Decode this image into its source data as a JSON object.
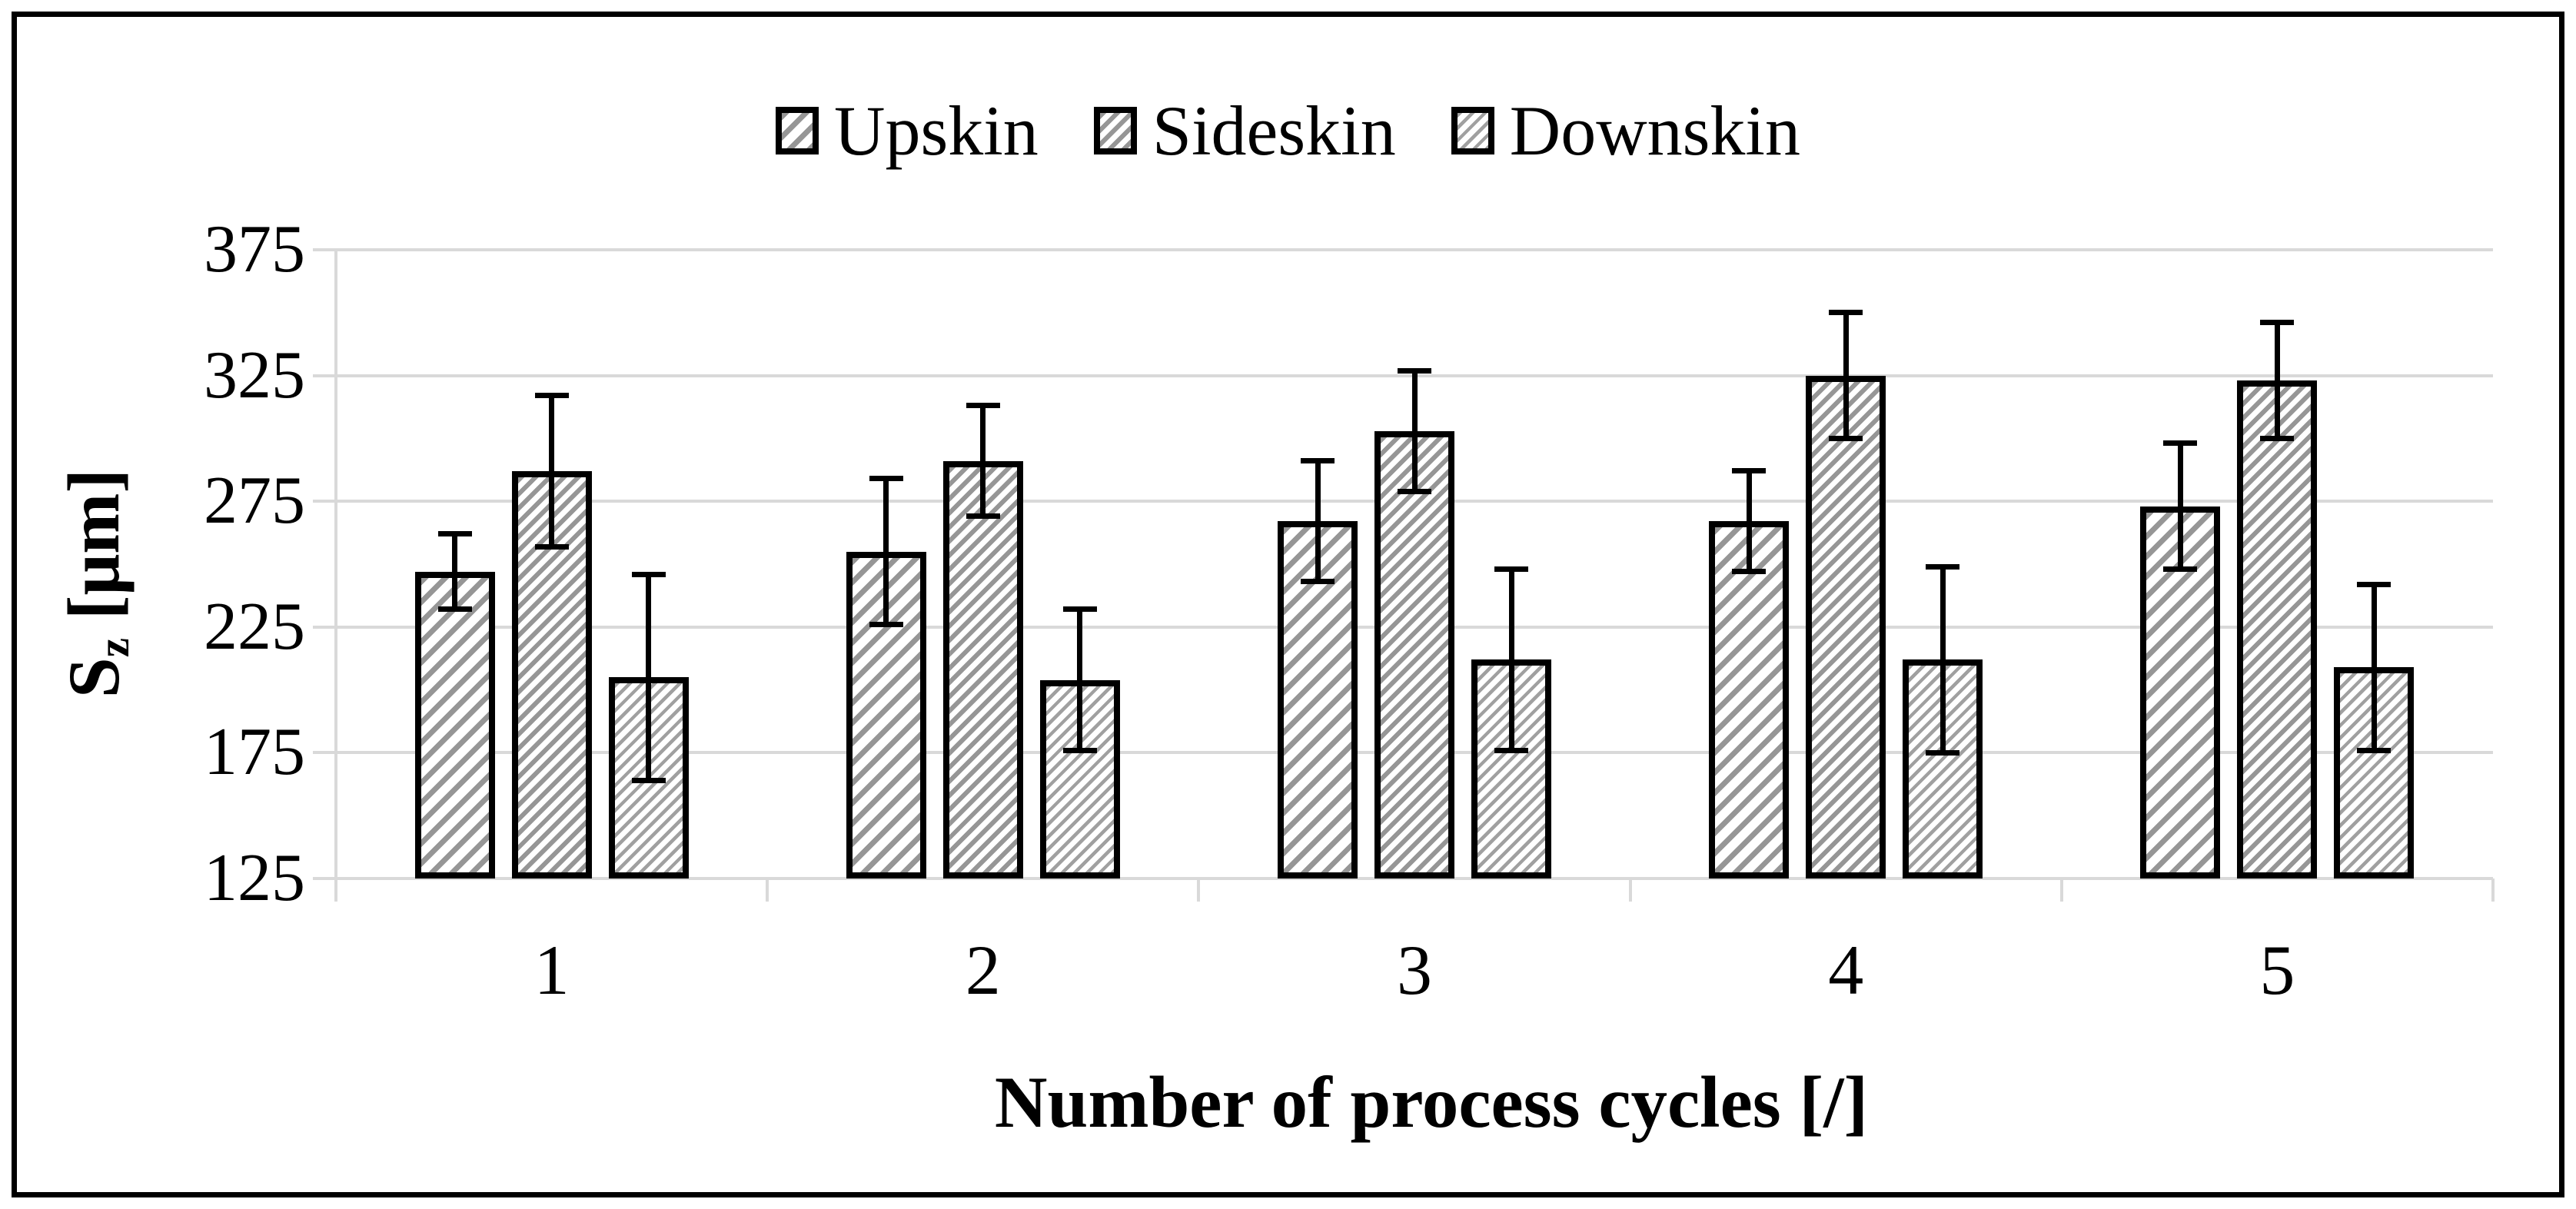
{
  "legend": {
    "items": [
      {
        "label": "Upskin",
        "pattern": "upskin",
        "swatch_icon": "diagonal-hatch-wide"
      },
      {
        "label": "Sideskin",
        "pattern": "sideskin",
        "swatch_icon": "diagonal-hatch-dense"
      },
      {
        "label": "Downskin",
        "pattern": "downskin",
        "swatch_icon": "diagonal-hatch-fine"
      }
    ]
  },
  "y_axis_title": {
    "base": "S",
    "subscript": "z",
    "unit": " [μm]"
  },
  "chart_data": {
    "type": "bar",
    "title": "",
    "xlabel": "Number of process cycles [/]",
    "ylabel": "Sz [μm]",
    "categories": [
      "1",
      "2",
      "3",
      "4",
      "5"
    ],
    "series": [
      {
        "name": "Upskin",
        "pattern": "upskin",
        "values": [
          247,
          255,
          267,
          267,
          273
        ],
        "errors": [
          15,
          29,
          24,
          20,
          25
        ]
      },
      {
        "name": "Sideskin",
        "pattern": "sideskin",
        "values": [
          287,
          291,
          303,
          325,
          323
        ],
        "errors": [
          30,
          22,
          24,
          25,
          23
        ]
      },
      {
        "name": "Downskin",
        "pattern": "downskin",
        "values": [
          205,
          204,
          212,
          212,
          209
        ],
        "errors": [
          41,
          28,
          36,
          37,
          33
        ]
      }
    ],
    "ylim": [
      125,
      375
    ],
    "yticks": [
      125,
      175,
      225,
      275,
      325,
      375
    ],
    "grid": "horizontal-on",
    "legend_position": "top-center",
    "colors": {
      "hatch_gray": "#969696",
      "gridline": "#d9d9d9",
      "bar_border": "#000000",
      "error_bar": "#000000",
      "text": "#000000",
      "background": "#ffffff"
    }
  }
}
